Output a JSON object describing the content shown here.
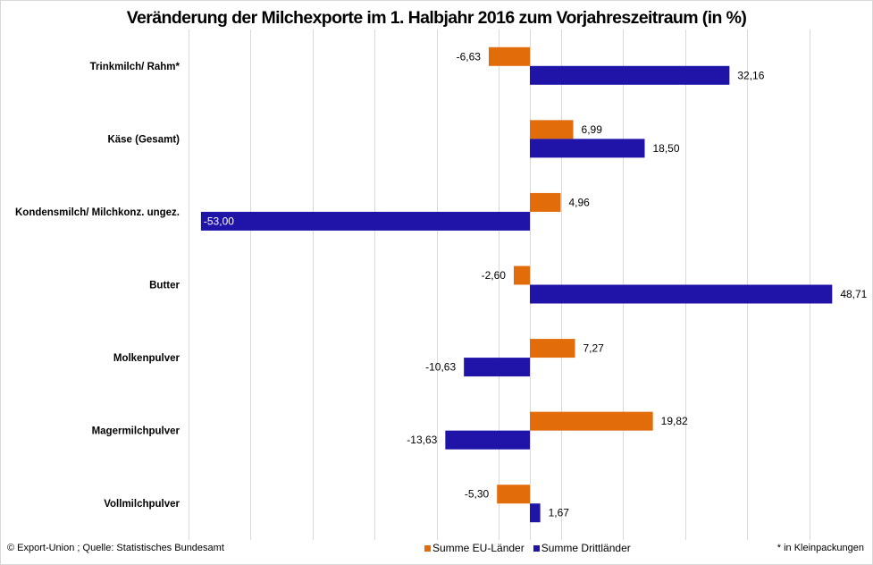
{
  "chart_data": {
    "type": "bar",
    "orientation": "horizontal",
    "title": "Veränderung der Milchexporte im 1. Halbjahr 2016 zum Vorjahreszeitraum (in %)",
    "xlabel": "",
    "ylabel": "",
    "xlim": [
      -55,
      55
    ],
    "grid": true,
    "grid_step": 10,
    "legend_position": "bottom",
    "categories": [
      "Trinkmilch/ Rahm*",
      "Käse (Gesamt)",
      "Kondensmilch/ Milchkonz. ungez.",
      "Butter",
      "Molkenpulver",
      "Magermilchpulver",
      "Vollmilchpulver"
    ],
    "series": [
      {
        "name": "Summe EU-Länder",
        "color": "#E36C0A",
        "values": [
          -6.63,
          6.99,
          4.96,
          -2.6,
          7.27,
          19.82,
          -5.3
        ],
        "labels": [
          "-6,63",
          "6,99",
          "4,96",
          "-2,60",
          "7,27",
          "19,82",
          "-5,30"
        ]
      },
      {
        "name": "Summe Drittländer",
        "color": "#1F13A8",
        "values": [
          32.16,
          18.5,
          -53.0,
          48.71,
          -10.63,
          -13.63,
          1.67
        ],
        "labels": [
          "32,16",
          "18,50",
          "-53,00",
          "48,71",
          "-10,63",
          "-13,63",
          "1,67"
        ]
      }
    ]
  },
  "footer": {
    "source": "© Export-Union ; Quelle:  Statistisches Bundesamt",
    "note": "* in Kleinpackungen"
  }
}
